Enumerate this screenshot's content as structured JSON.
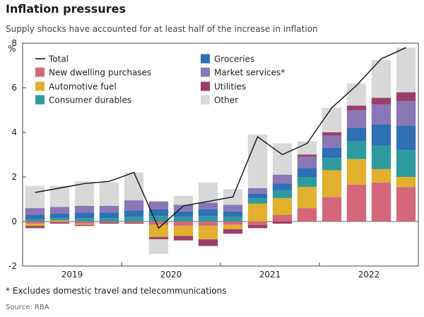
{
  "header": {
    "title": "Inflation pressures",
    "subtitle": "Supply shocks have accounted for at least half of the increase in inflation"
  },
  "footer": {
    "footnote": "* Excludes domestic travel and telecommunications",
    "source": "Source: RBA"
  },
  "chart_data": {
    "type": "bar",
    "stacked": true,
    "ylabel": "%",
    "ylim": [
      -2,
      8
    ],
    "yticks": [
      -2,
      0,
      2,
      4,
      6,
      8
    ],
    "year_labels": [
      "2019",
      "2020",
      "2021",
      "2022"
    ],
    "categories": [
      "2019 Q1",
      "2019 Q2",
      "2019 Q3",
      "2019 Q4",
      "2020 Q1",
      "2020 Q2",
      "2020 Q3",
      "2020 Q4",
      "2021 Q1",
      "2021 Q2",
      "2021 Q3",
      "2021 Q4",
      "2022 Q1",
      "2022 Q2",
      "2022 Q3",
      "2022 Q4"
    ],
    "series": [
      {
        "name": "New dwelling purchases",
        "color": "#d4687a",
        "values": [
          -0.1,
          -0.05,
          -0.1,
          -0.05,
          -0.05,
          -0.15,
          -0.2,
          -0.2,
          -0.15,
          -0.15,
          0.3,
          0.6,
          1.1,
          1.65,
          1.75,
          1.55
        ]
      },
      {
        "name": "Automotive fuel",
        "color": "#e0b02e",
        "values": [
          -0.1,
          0.05,
          -0.05,
          0.0,
          0.0,
          -0.55,
          -0.45,
          -0.6,
          -0.2,
          0.8,
          0.75,
          0.95,
          1.2,
          1.15,
          0.6,
          0.45
        ]
      },
      {
        "name": "Consumer durables",
        "color": "#2f9a9e",
        "values": [
          0.1,
          0.1,
          0.15,
          0.15,
          0.2,
          0.25,
          0.2,
          0.25,
          0.2,
          0.25,
          0.35,
          0.45,
          0.55,
          0.8,
          1.05,
          1.2
        ]
      },
      {
        "name": "Groceries",
        "color": "#2f6fb4",
        "values": [
          0.2,
          0.2,
          0.25,
          0.25,
          0.3,
          0.3,
          0.25,
          0.3,
          0.25,
          0.2,
          0.3,
          0.4,
          0.45,
          0.6,
          0.95,
          1.1
        ]
      },
      {
        "name": "Market services*",
        "color": "#8a77b5",
        "values": [
          0.3,
          0.3,
          0.3,
          0.3,
          0.45,
          0.35,
          0.3,
          0.3,
          0.3,
          0.25,
          0.4,
          0.5,
          0.55,
          0.8,
          0.9,
          1.1
        ]
      },
      {
        "name": "Utilities",
        "color": "#9b3e6b",
        "values": [
          -0.1,
          -0.05,
          -0.05,
          -0.05,
          -0.05,
          -0.1,
          -0.2,
          -0.3,
          -0.2,
          -0.15,
          -0.1,
          0.1,
          0.15,
          0.2,
          0.3,
          0.4
        ]
      },
      {
        "name": "Other",
        "color": "#d8d8d8",
        "values": [
          1.0,
          0.95,
          1.1,
          1.05,
          1.25,
          0.0,
          0.4,
          0.9,
          0.7,
          2.4,
          1.4,
          0.6,
          1.1,
          1.0,
          1.7,
          2.0
        ]
      }
    ],
    "negative_other": [
      0.0,
      0.0,
      0.0,
      0.0,
      0.0,
      -0.65,
      0.0,
      0.0,
      0.0,
      0.0,
      0.0,
      0.0,
      0.0,
      0.0,
      0.0,
      0.0
    ],
    "total": {
      "name": "Total",
      "color": "#111111",
      "values": [
        1.3,
        1.5,
        1.7,
        1.8,
        2.2,
        -0.3,
        0.7,
        0.9,
        1.1,
        3.8,
        3.0,
        3.5,
        5.1,
        6.1,
        7.3,
        7.8
      ]
    },
    "legend": [
      {
        "name": "Total",
        "kind": "line",
        "color": "#111111"
      },
      {
        "name": "Groceries",
        "kind": "box",
        "color": "#2f6fb4"
      },
      {
        "name": "New dwelling purchases",
        "kind": "box",
        "color": "#d4687a"
      },
      {
        "name": "Market services*",
        "kind": "box",
        "color": "#8a77b5"
      },
      {
        "name": "Automotive fuel",
        "kind": "box",
        "color": "#e0b02e"
      },
      {
        "name": "Utilities",
        "kind": "box",
        "color": "#9b3e6b"
      },
      {
        "name": "Consumer durables",
        "kind": "box",
        "color": "#2f9a9e"
      },
      {
        "name": "Other",
        "kind": "box",
        "color": "#d8d8d8"
      }
    ]
  }
}
